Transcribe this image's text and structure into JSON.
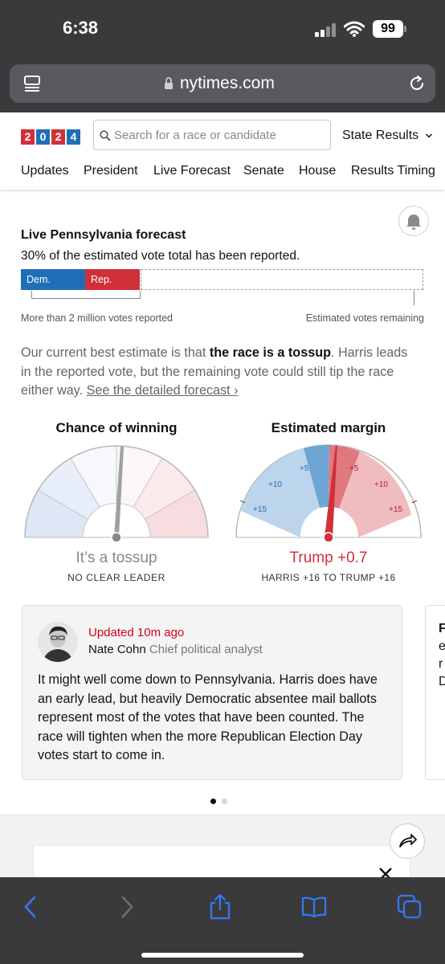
{
  "status_bar": {
    "time": "6:38",
    "battery": "99"
  },
  "browser": {
    "url": "nytimes.com"
  },
  "header": {
    "logo_digits": [
      "2",
      "0",
      "2",
      "4"
    ],
    "search_placeholder": "Search for a race or candidate",
    "state_results": "State Results",
    "nav": [
      "Updates",
      "President",
      "Live Forecast",
      "Senate",
      "House",
      "Results Timing"
    ]
  },
  "forecast": {
    "title": "Live Pennsylvania forecast",
    "subtitle": "30% of the estimated vote total has been reported.",
    "reported_fraction": 0.3,
    "dem_label": "Dem.",
    "rep_label": "Rep.",
    "reported_label": "More than 2 million votes reported",
    "remaining_label": "Estimated votes remaining",
    "estimate_pre": "Our current best estimate is that ",
    "estimate_bold": "the race is a tossup",
    "estimate_post": ". Harris leads in the reported vote, but the remaining vote could still tip the race either way. ",
    "estimate_link": "See the detailed forecast ›"
  },
  "chance_gauge": {
    "title": "Chance of winning",
    "result": "It’s a tossup",
    "caption": "NO CLEAR LEADER"
  },
  "margin_gauge": {
    "title": "Estimated margin",
    "result": "Trump +0.7",
    "caption": "HARRIS +16 TO TRUMP +16",
    "left_ticks": [
      "+5",
      "+10",
      "+15"
    ],
    "right_ticks": [
      "+5",
      "+10",
      "+15"
    ],
    "value": 0.7,
    "range": 16
  },
  "update_card": {
    "updated": "Updated 10m ago",
    "author": "Nate Cohn",
    "role": "Chief political analyst",
    "text": "It might well come down to Pennsylvania. Harris does have an early lead, but heavily Democratic absentee mail ballots represent most of the votes that have been counted. The race will tighten when the more Republican Election Day votes start to come in."
  },
  "next_card_chars": [
    "F",
    "e",
    "r",
    "D"
  ],
  "colors": {
    "dem": "#1f6fb8",
    "rep": "#d0303a",
    "updated": "#d0021b",
    "chrome": "#3a3a3c",
    "ios_blue": "#3478f6"
  }
}
